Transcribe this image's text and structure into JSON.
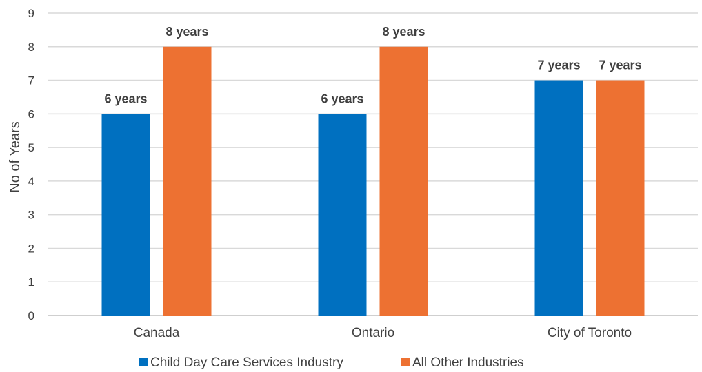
{
  "chart_data": {
    "type": "bar",
    "categories": [
      "Canada",
      "Ontario",
      "City of Toronto"
    ],
    "series": [
      {
        "name": "Child Day Care Services Industry",
        "values": [
          6,
          6,
          7
        ],
        "labels": [
          "6 years",
          "6 years",
          "7 years"
        ],
        "color": "#0070c0"
      },
      {
        "name": "All Other Industries",
        "values": [
          8,
          8,
          7
        ],
        "labels": [
          "8 years",
          "8 years",
          "7 years"
        ],
        "color": "#ed7132"
      }
    ],
    "ylabel": "No of Years",
    "xlabel": "",
    "ylim": [
      0,
      9
    ],
    "yticks": [
      "0",
      "1",
      "2",
      "3",
      "4",
      "5",
      "6",
      "7",
      "8",
      "9"
    ],
    "grid": true,
    "legend": "bottom"
  }
}
